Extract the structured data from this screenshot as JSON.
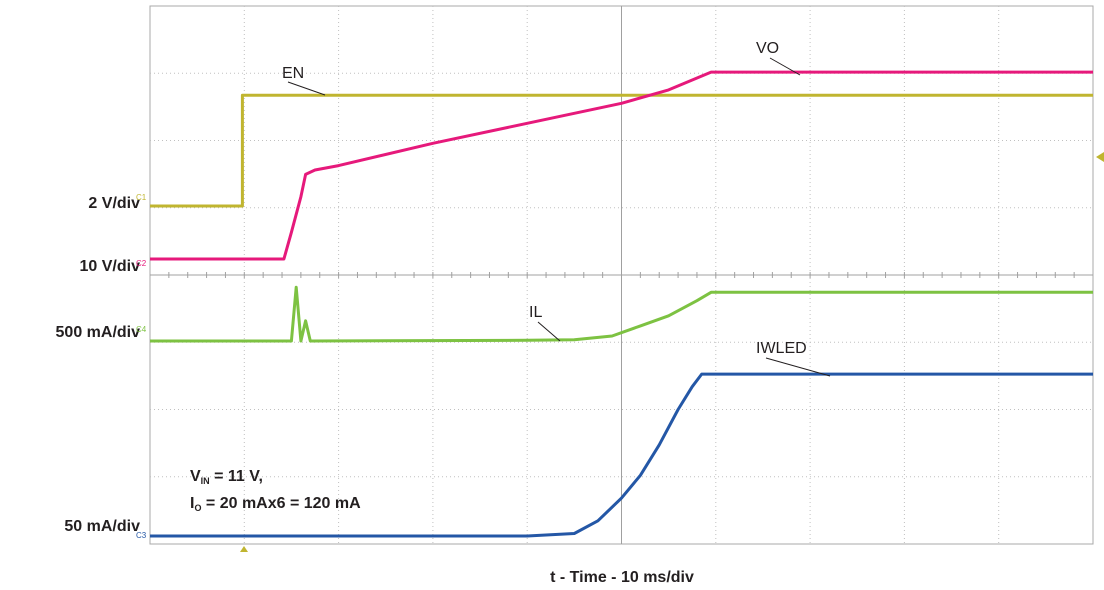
{
  "chart_data": {
    "type": "line",
    "xlabel": "t - Time - 10 ms/div",
    "x_unit": "div",
    "x_range": [
      0,
      10
    ],
    "grid": true,
    "conditions": {
      "line1_main": "V",
      "line1_sub": "IN",
      "line1_rest": " = 11 V,",
      "line2_main": "I",
      "line2_sub": "O",
      "line2_rest": " = 20 mAx6 = 120 mA"
    },
    "channels": [
      {
        "id": "C1",
        "scale": "2 V/div",
        "color": "#c0b530"
      },
      {
        "id": "C2",
        "scale": "10 V/div",
        "color": "#e6197b"
      },
      {
        "id": "C4",
        "scale": "500 mA/div",
        "color": "#7dc242"
      },
      {
        "id": "C3",
        "scale": "50 mA/div",
        "color": "#2457a6"
      }
    ],
    "series": [
      {
        "name": "EN",
        "channel": "C1",
        "color": "#c0b530",
        "points": [
          [
            0,
            0
          ],
          [
            0.98,
            0
          ],
          [
            0.98,
            2.6
          ],
          [
            10,
            2.6
          ]
        ]
      },
      {
        "name": "VO",
        "channel": "C2",
        "color": "#e6197b",
        "points": [
          [
            0,
            0
          ],
          [
            1.42,
            0
          ],
          [
            1.5,
            0.6
          ],
          [
            1.6,
            1.4
          ],
          [
            1.65,
            1.9
          ],
          [
            1.75,
            2.0
          ],
          [
            2.0,
            2.1
          ],
          [
            3.0,
            2.6
          ],
          [
            4.0,
            3.05
          ],
          [
            5.0,
            3.5
          ],
          [
            5.5,
            3.8
          ],
          [
            5.95,
            4.2
          ],
          [
            10,
            4.2
          ]
        ]
      },
      {
        "name": "IL",
        "channel": "C4",
        "color": "#7dc242",
        "points": [
          [
            0,
            0
          ],
          [
            1.5,
            0
          ],
          [
            1.55,
            1.6
          ],
          [
            1.6,
            0
          ],
          [
            1.65,
            0.6
          ],
          [
            1.7,
            0
          ],
          [
            4.0,
            0.02
          ],
          [
            4.5,
            0.04
          ],
          [
            4.9,
            0.15
          ],
          [
            5.2,
            0.45
          ],
          [
            5.5,
            0.75
          ],
          [
            5.8,
            1.2
          ],
          [
            5.95,
            1.45
          ],
          [
            10,
            1.45
          ]
        ]
      },
      {
        "name": "IWLED",
        "channel": "C3",
        "color": "#2457a6",
        "points": [
          [
            0,
            0
          ],
          [
            4.0,
            0
          ],
          [
            4.5,
            0.05
          ],
          [
            4.75,
            0.3
          ],
          [
            5.0,
            0.75
          ],
          [
            5.2,
            1.2
          ],
          [
            5.4,
            1.8
          ],
          [
            5.6,
            2.5
          ],
          [
            5.75,
            2.95
          ],
          [
            5.85,
            3.2
          ],
          [
            10,
            3.2
          ]
        ]
      }
    ]
  }
}
